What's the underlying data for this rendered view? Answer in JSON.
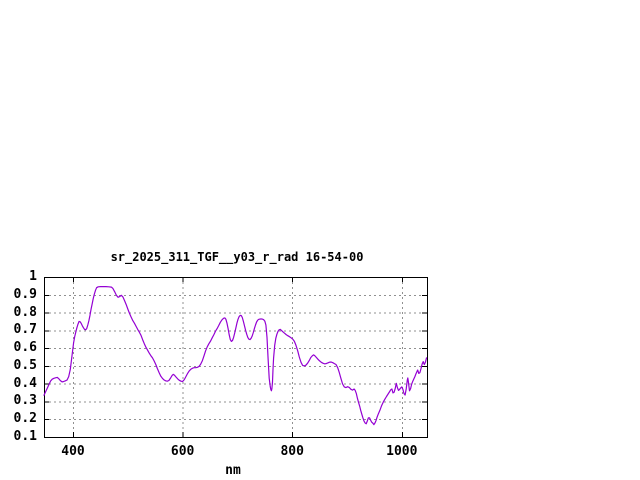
{
  "colors": {
    "background": "#ffffff",
    "line": "#9400d3",
    "grid": "#909090",
    "border": "#000000",
    "text": "#000000"
  },
  "chart_data": {
    "type": "line",
    "title": "sr_2025_311_TGF__y03_r_rad 16-54-00",
    "xlabel": "nm",
    "ylabel": "",
    "x_range": [
      347,
      1046
    ],
    "y_range": [
      0.1,
      1.0
    ],
    "grid": true,
    "legend": "none",
    "x_ticks": [
      {
        "value": 400,
        "label": "400"
      },
      {
        "value": 600,
        "label": "600"
      },
      {
        "value": 800,
        "label": "800"
      },
      {
        "value": 1000,
        "label": "1000"
      }
    ],
    "y_ticks": [
      {
        "value": 1.0,
        "label": "1"
      },
      {
        "value": 0.9,
        "label": "0.9"
      },
      {
        "value": 0.8,
        "label": "0.8"
      },
      {
        "value": 0.7,
        "label": "0.7"
      },
      {
        "value": 0.6,
        "label": "0.6"
      },
      {
        "value": 0.5,
        "label": "0.5"
      },
      {
        "value": 0.4,
        "label": "0.4"
      },
      {
        "value": 0.3,
        "label": "0.3"
      },
      {
        "value": 0.2,
        "label": "0.2"
      },
      {
        "value": 0.1,
        "label": "0.1"
      }
    ],
    "series": [
      {
        "name": "sr_2025_311_TGF__y03_r_rad",
        "points": [
          [
            347,
            0.335
          ],
          [
            350,
            0.355
          ],
          [
            353,
            0.375
          ],
          [
            356,
            0.395
          ],
          [
            359,
            0.415
          ],
          [
            362,
            0.425
          ],
          [
            365,
            0.43
          ],
          [
            368,
            0.433
          ],
          [
            371,
            0.435
          ],
          [
            374,
            0.428
          ],
          [
            377,
            0.417
          ],
          [
            380,
            0.41
          ],
          [
            383,
            0.412
          ],
          [
            386,
            0.416
          ],
          [
            389,
            0.42
          ],
          [
            392,
            0.44
          ],
          [
            395,
            0.48
          ],
          [
            397,
            0.53
          ],
          [
            399,
            0.58
          ],
          [
            401,
            0.63
          ],
          [
            403,
            0.665
          ],
          [
            405,
            0.69
          ],
          [
            407,
            0.715
          ],
          [
            409,
            0.735
          ],
          [
            411,
            0.75
          ],
          [
            413,
            0.748
          ],
          [
            415,
            0.738
          ],
          [
            417,
            0.725
          ],
          [
            419,
            0.714
          ],
          [
            421,
            0.706
          ],
          [
            423,
            0.703
          ],
          [
            425,
            0.71
          ],
          [
            427,
            0.73
          ],
          [
            429,
            0.755
          ],
          [
            431,
            0.785
          ],
          [
            433,
            0.82
          ],
          [
            435,
            0.85
          ],
          [
            437,
            0.88
          ],
          [
            439,
            0.905
          ],
          [
            441,
            0.925
          ],
          [
            443,
            0.94
          ],
          [
            446,
            0.945
          ],
          [
            450,
            0.946
          ],
          [
            455,
            0.946
          ],
          [
            460,
            0.946
          ],
          [
            465,
            0.945
          ],
          [
            470,
            0.943
          ],
          [
            473,
            0.935
          ],
          [
            476,
            0.917
          ],
          [
            479,
            0.898
          ],
          [
            482,
            0.886
          ],
          [
            485,
            0.89
          ],
          [
            488,
            0.897
          ],
          [
            491,
            0.888
          ],
          [
            494,
            0.868
          ],
          [
            497,
            0.845
          ],
          [
            500,
            0.82
          ],
          [
            503,
            0.795
          ],
          [
            506,
            0.775
          ],
          [
            509,
            0.755
          ],
          [
            512,
            0.74
          ],
          [
            515,
            0.722
          ],
          [
            518,
            0.705
          ],
          [
            521,
            0.69
          ],
          [
            524,
            0.672
          ],
          [
            527,
            0.648
          ],
          [
            530,
            0.625
          ],
          [
            533,
            0.605
          ],
          [
            536,
            0.588
          ],
          [
            539,
            0.572
          ],
          [
            542,
            0.558
          ],
          [
            545,
            0.545
          ],
          [
            548,
            0.528
          ],
          [
            551,
            0.508
          ],
          [
            554,
            0.485
          ],
          [
            557,
            0.462
          ],
          [
            560,
            0.443
          ],
          [
            563,
            0.43
          ],
          [
            566,
            0.421
          ],
          [
            569,
            0.416
          ],
          [
            572,
            0.414
          ],
          [
            575,
            0.418
          ],
          [
            578,
            0.432
          ],
          [
            581,
            0.447
          ],
          [
            583,
            0.452
          ],
          [
            585,
            0.448
          ],
          [
            588,
            0.437
          ],
          [
            591,
            0.427
          ],
          [
            594,
            0.419
          ],
          [
            597,
            0.414
          ],
          [
            600,
            0.412
          ],
          [
            603,
            0.423
          ],
          [
            606,
            0.44
          ],
          [
            609,
            0.458
          ],
          [
            612,
            0.472
          ],
          [
            615,
            0.481
          ],
          [
            618,
            0.487
          ],
          [
            621,
            0.49
          ],
          [
            624,
            0.49
          ],
          [
            627,
            0.492
          ],
          [
            630,
            0.497
          ],
          [
            633,
            0.51
          ],
          [
            636,
            0.53
          ],
          [
            639,
            0.557
          ],
          [
            642,
            0.585
          ],
          [
            645,
            0.608
          ],
          [
            648,
            0.625
          ],
          [
            651,
            0.64
          ],
          [
            654,
            0.658
          ],
          [
            657,
            0.676
          ],
          [
            660,
            0.695
          ],
          [
            663,
            0.71
          ],
          [
            666,
            0.728
          ],
          [
            669,
            0.746
          ],
          [
            672,
            0.76
          ],
          [
            675,
            0.768
          ],
          [
            677,
            0.77
          ],
          [
            679,
            0.762
          ],
          [
            681,
            0.74
          ],
          [
            683,
            0.71
          ],
          [
            685,
            0.675
          ],
          [
            687,
            0.648
          ],
          [
            689,
            0.638
          ],
          [
            691,
            0.643
          ],
          [
            693,
            0.66
          ],
          [
            695,
            0.685
          ],
          [
            697,
            0.712
          ],
          [
            699,
            0.74
          ],
          [
            701,
            0.762
          ],
          [
            703,
            0.777
          ],
          [
            705,
            0.784
          ],
          [
            707,
            0.783
          ],
          [
            709,
            0.772
          ],
          [
            711,
            0.75
          ],
          [
            713,
            0.725
          ],
          [
            715,
            0.7
          ],
          [
            717,
            0.678
          ],
          [
            719,
            0.66
          ],
          [
            721,
            0.65
          ],
          [
            723,
            0.648
          ],
          [
            725,
            0.655
          ],
          [
            727,
            0.668
          ],
          [
            729,
            0.688
          ],
          [
            731,
            0.71
          ],
          [
            733,
            0.73
          ],
          [
            735,
            0.747
          ],
          [
            737,
            0.757
          ],
          [
            739,
            0.762
          ],
          [
            742,
            0.764
          ],
          [
            745,
            0.764
          ],
          [
            748,
            0.76
          ],
          [
            750,
            0.752
          ],
          [
            752,
            0.73
          ],
          [
            754,
            0.66
          ],
          [
            756,
            0.54
          ],
          [
            758,
            0.43
          ],
          [
            760,
            0.382
          ],
          [
            761,
            0.368
          ],
          [
            762,
            0.36
          ],
          [
            763,
            0.372
          ],
          [
            764,
            0.41
          ],
          [
            765,
            0.48
          ],
          [
            766,
            0.545
          ],
          [
            768,
            0.615
          ],
          [
            770,
            0.655
          ],
          [
            772,
            0.678
          ],
          [
            774,
            0.694
          ],
          [
            776,
            0.703
          ],
          [
            778,
            0.705
          ],
          [
            780,
            0.7
          ],
          [
            783,
            0.692
          ],
          [
            786,
            0.684
          ],
          [
            789,
            0.676
          ],
          [
            792,
            0.67
          ],
          [
            795,
            0.664
          ],
          [
            798,
            0.658
          ],
          [
            801,
            0.65
          ],
          [
            804,
            0.638
          ],
          [
            807,
            0.615
          ],
          [
            810,
            0.585
          ],
          [
            813,
            0.55
          ],
          [
            816,
            0.52
          ],
          [
            819,
            0.503
          ],
          [
            822,
            0.5
          ],
          [
            825,
            0.504
          ],
          [
            828,
            0.515
          ],
          [
            831,
            0.53
          ],
          [
            834,
            0.547
          ],
          [
            837,
            0.558
          ],
          [
            839,
            0.562
          ],
          [
            841,
            0.558
          ],
          [
            844,
            0.548
          ],
          [
            847,
            0.537
          ],
          [
            850,
            0.528
          ],
          [
            853,
            0.52
          ],
          [
            856,
            0.515
          ],
          [
            859,
            0.512
          ],
          [
            862,
            0.513
          ],
          [
            865,
            0.517
          ],
          [
            868,
            0.521
          ],
          [
            871,
            0.522
          ],
          [
            874,
            0.518
          ],
          [
            877,
            0.513
          ],
          [
            880,
            0.508
          ],
          [
            883,
            0.49
          ],
          [
            886,
            0.462
          ],
          [
            889,
            0.428
          ],
          [
            892,
            0.398
          ],
          [
            895,
            0.382
          ],
          [
            898,
            0.378
          ],
          [
            901,
            0.383
          ],
          [
            904,
            0.379
          ],
          [
            907,
            0.369
          ],
          [
            910,
            0.364
          ],
          [
            913,
            0.37
          ],
          [
            915,
            0.362
          ],
          [
            917,
            0.345
          ],
          [
            919,
            0.318
          ],
          [
            921,
            0.295
          ],
          [
            923,
            0.275
          ],
          [
            925,
            0.25
          ],
          [
            927,
            0.228
          ],
          [
            929,
            0.208
          ],
          [
            931,
            0.19
          ],
          [
            933,
            0.179
          ],
          [
            935,
            0.174
          ],
          [
            937,
            0.19
          ],
          [
            939,
            0.208
          ],
          [
            941,
            0.208
          ],
          [
            943,
            0.195
          ],
          [
            945,
            0.183
          ],
          [
            947,
            0.178
          ],
          [
            949,
            0.17
          ],
          [
            951,
            0.178
          ],
          [
            953,
            0.192
          ],
          [
            955,
            0.212
          ],
          [
            957,
            0.228
          ],
          [
            960,
            0.25
          ],
          [
            963,
            0.275
          ],
          [
            966,
            0.296
          ],
          [
            969,
            0.312
          ],
          [
            972,
            0.328
          ],
          [
            975,
            0.342
          ],
          [
            978,
            0.356
          ],
          [
            980,
            0.366
          ],
          [
            982,
            0.37
          ],
          [
            984,
            0.348
          ],
          [
            986,
            0.352
          ],
          [
            988,
            0.372
          ],
          [
            990,
            0.402
          ],
          [
            992,
            0.378
          ],
          [
            994,
            0.362
          ],
          [
            996,
            0.368
          ],
          [
            998,
            0.376
          ],
          [
            1000,
            0.382
          ],
          [
            1002,
            0.368
          ],
          [
            1004,
            0.344
          ],
          [
            1006,
            0.336
          ],
          [
            1008,
            0.37
          ],
          [
            1010,
            0.42
          ],
          [
            1011,
            0.432
          ],
          [
            1012,
            0.41
          ],
          [
            1014,
            0.36
          ],
          [
            1016,
            0.372
          ],
          [
            1018,
            0.398
          ],
          [
            1020,
            0.414
          ],
          [
            1022,
            0.426
          ],
          [
            1024,
            0.44
          ],
          [
            1026,
            0.456
          ],
          [
            1028,
            0.47
          ],
          [
            1029,
            0.477
          ],
          [
            1031,
            0.458
          ],
          [
            1033,
            0.462
          ],
          [
            1035,
            0.485
          ],
          [
            1037,
            0.51
          ],
          [
            1039,
            0.524
          ],
          [
            1041,
            0.507
          ],
          [
            1043,
            0.52
          ],
          [
            1045,
            0.545
          ]
        ]
      }
    ]
  }
}
